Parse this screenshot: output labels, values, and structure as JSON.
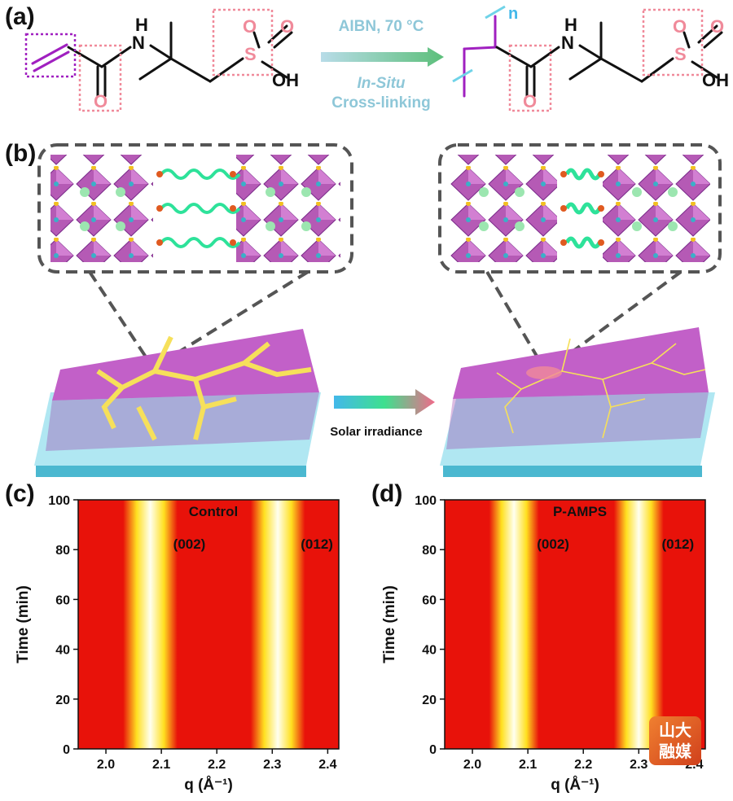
{
  "panels": {
    "a": "(a)",
    "b": "(b)",
    "c": "(c)",
    "d": "(d)"
  },
  "reaction": {
    "condition": "AIBN, 70 °C",
    "in_situ": "In-Situ",
    "crosslinking": "Cross-linking",
    "atoms": {
      "H": "H",
      "N": "N",
      "O": "O",
      "S": "S",
      "OH": "OH",
      "n": "n"
    }
  },
  "scheme_b": {
    "arrow_label": "Solar irradiance"
  },
  "logo_text": [
    "山大",
    "融媒"
  ],
  "colors": {
    "heat_red": "#e8120a",
    "heat_yellow": "#ffe020",
    "heat_white": "#fffff0",
    "perovskite": "#b55ab5",
    "substrate": "#6fd3e8",
    "grain_boundary": "#f6e05a",
    "polymer": "#2ee29a",
    "highlight_box": "#f08a9a",
    "vinyl": "#a020c0"
  },
  "chart_data": [
    {
      "type": "heatmap",
      "title": "Control",
      "xlabel": "q (Å⁻¹)",
      "ylabel": "Time (min)",
      "xlim": [
        1.95,
        2.42
      ],
      "ylim": [
        0,
        100
      ],
      "xticks": [
        "2.0",
        "2.1",
        "2.2",
        "2.3",
        "2.4"
      ],
      "yticks": [
        "0",
        "20",
        "40",
        "60",
        "80",
        "100"
      ],
      "annotations": [
        "(002)",
        "(012)"
      ],
      "peaks_q": [
        {
          "label": "(002)",
          "q_center": 2.08,
          "width": 0.035
        },
        {
          "label": "(012)",
          "q_center": 2.31,
          "width": 0.035
        }
      ]
    },
    {
      "type": "heatmap",
      "title": "P-AMPS",
      "xlabel": "q (Å⁻¹)",
      "ylabel": "Time (min)",
      "xlim": [
        1.95,
        2.42
      ],
      "ylim": [
        0,
        100
      ],
      "xticks": [
        "2.0",
        "2.1",
        "2.2",
        "2.3",
        "2.4"
      ],
      "yticks": [
        "0",
        "20",
        "40",
        "60",
        "80",
        "100"
      ],
      "annotations": [
        "(002)",
        "(012)"
      ],
      "peaks_q": [
        {
          "label": "(002)",
          "q_center": 2.075,
          "width": 0.032
        },
        {
          "label": "(012)",
          "q_center": 2.3,
          "width": 0.032
        }
      ]
    }
  ]
}
